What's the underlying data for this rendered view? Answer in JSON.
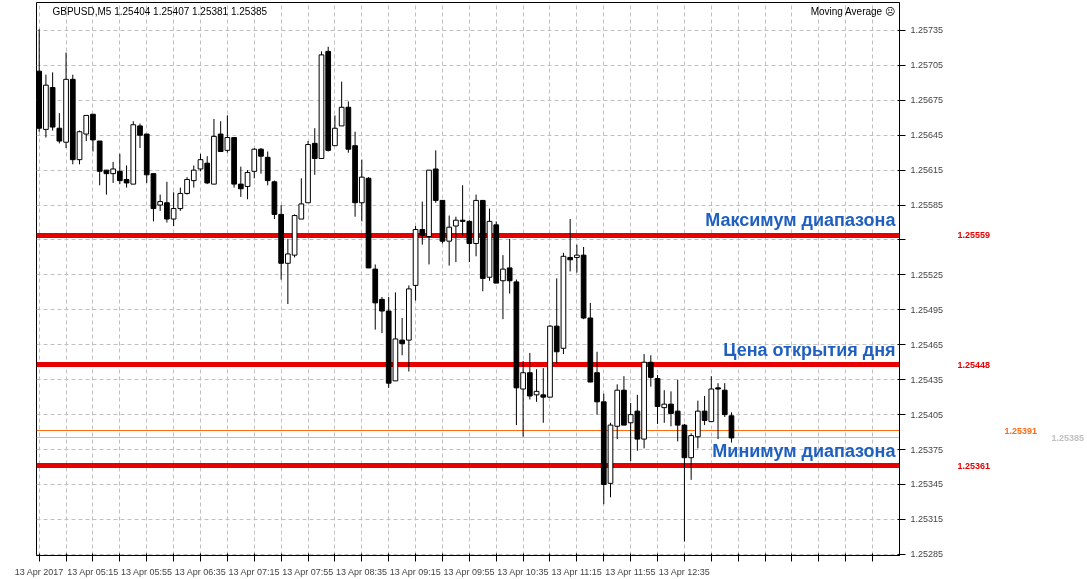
{
  "chart_data": {
    "type": "candlestick",
    "title": "GBPUSD,M5  1.25404 1.25407 1.25381 1.25385",
    "annotations": [
      "Moving Average ☹",
      "1.25559",
      "1.25448",
      "1.25361",
      "1.25391",
      "1.25385"
    ],
    "x": [
      "2017-04-13T04:35",
      "2017-04-13T04:40",
      "2017-04-13T04:45",
      "2017-04-13T04:50",
      "2017-04-13T04:55",
      "2017-04-13T05:00",
      "2017-04-13T05:05",
      "2017-04-13T05:10",
      "2017-04-13T05:15",
      "2017-04-13T05:20",
      "2017-04-13T05:25",
      "2017-04-13T05:30",
      "2017-04-13T05:35",
      "2017-04-13T05:40",
      "2017-04-13T05:45",
      "2017-04-13T05:50",
      "2017-04-13T05:55",
      "2017-04-13T06:00",
      "2017-04-13T06:05",
      "2017-04-13T06:10",
      "2017-04-13T06:15",
      "2017-04-13T06:20",
      "2017-04-13T06:25",
      "2017-04-13T06:30",
      "2017-04-13T06:35",
      "2017-04-13T06:40",
      "2017-04-13T06:45",
      "2017-04-13T06:50",
      "2017-04-13T06:55",
      "2017-04-13T07:00",
      "2017-04-13T07:05",
      "2017-04-13T07:10",
      "2017-04-13T07:15",
      "2017-04-13T07:20",
      "2017-04-13T07:25",
      "2017-04-13T07:30",
      "2017-04-13T07:35",
      "2017-04-13T07:40",
      "2017-04-13T07:45",
      "2017-04-13T07:50",
      "2017-04-13T07:55",
      "2017-04-13T08:00",
      "2017-04-13T08:05",
      "2017-04-13T08:10",
      "2017-04-13T08:15",
      "2017-04-13T08:20",
      "2017-04-13T08:25",
      "2017-04-13T08:30",
      "2017-04-13T08:35",
      "2017-04-13T08:40",
      "2017-04-13T08:45",
      "2017-04-13T08:50",
      "2017-04-13T08:55",
      "2017-04-13T09:00",
      "2017-04-13T09:05",
      "2017-04-13T09:10",
      "2017-04-13T09:15",
      "2017-04-13T09:20",
      "2017-04-13T09:25",
      "2017-04-13T09:30",
      "2017-04-13T09:35",
      "2017-04-13T09:40",
      "2017-04-13T09:45",
      "2017-04-13T09:50",
      "2017-04-13T09:55",
      "2017-04-13T10:00",
      "2017-04-13T10:05",
      "2017-04-13T10:10",
      "2017-04-13T10:15",
      "2017-04-13T10:20",
      "2017-04-13T10:25",
      "2017-04-13T10:30",
      "2017-04-13T10:35",
      "2017-04-13T10:40",
      "2017-04-13T10:45",
      "2017-04-13T10:50",
      "2017-04-13T10:55",
      "2017-04-13T11:00",
      "2017-04-13T11:05",
      "2017-04-13T11:10",
      "2017-04-13T11:15",
      "2017-04-13T11:20",
      "2017-04-13T11:25",
      "2017-04-13T11:30",
      "2017-04-13T11:35",
      "2017-04-13T11:40",
      "2017-04-13T11:45",
      "2017-04-13T11:50",
      "2017-04-13T11:55",
      "2017-04-13T12:00",
      "2017-04-13T12:05",
      "2017-04-13T12:10",
      "2017-04-13T12:15",
      "2017-04-13T12:20",
      "2017-04-13T12:25",
      "2017-04-13T12:30",
      "2017-04-13T12:35",
      "2017-04-13T12:40",
      "2017-04-13T12:45",
      "2017-04-13T12:50",
      "2017-04-13T12:55",
      "2017-04-13T13:00",
      "2017-04-13T13:05",
      "2017-04-13T13:10"
    ],
    "ohlc": [
      [
        1.257,
        1.25736,
        1.25648,
        1.25651
      ],
      [
        1.2565,
        1.25697,
        1.25643,
        1.25688
      ],
      [
        1.25686,
        1.25699,
        1.25649,
        1.25652
      ],
      [
        1.25651,
        1.25664,
        1.25638,
        1.2564
      ],
      [
        1.25639,
        1.25716,
        1.25634,
        1.25693
      ],
      [
        1.25693,
        1.25697,
        1.2562,
        1.25624
      ],
      [
        1.25624,
        1.25649,
        1.2562,
        1.25648
      ],
      [
        1.25646,
        1.25662,
        1.2564,
        1.25662
      ],
      [
        1.25663,
        1.25663,
        1.25631,
        1.25641
      ],
      [
        1.2564,
        1.2564,
        1.25602,
        1.25614
      ],
      [
        1.25615,
        1.25615,
        1.25594,
        1.25612
      ],
      [
        1.25612,
        1.25622,
        1.25604,
        1.25616
      ],
      [
        1.25614,
        1.25629,
        1.25603,
        1.25606
      ],
      [
        1.25607,
        1.25619,
        1.256,
        1.25604
      ],
      [
        1.25603,
        1.25657,
        1.25603,
        1.25654
      ],
      [
        1.25653,
        1.25655,
        1.25634,
        1.25645
      ],
      [
        1.25646,
        1.25646,
        1.25604,
        1.25611
      ],
      [
        1.25612,
        1.25612,
        1.25571,
        1.25582
      ],
      [
        1.25585,
        1.25594,
        1.2558,
        1.25588
      ],
      [
        1.25587,
        1.25605,
        1.2557,
        1.25573
      ],
      [
        1.25573,
        1.25596,
        1.25567,
        1.25582
      ],
      [
        1.25582,
        1.256,
        1.2558,
        1.25595
      ],
      [
        1.25595,
        1.25609,
        1.25594,
        1.25607
      ],
      [
        1.25606,
        1.25619,
        1.256,
        1.25615
      ],
      [
        1.25616,
        1.25629,
        1.25614,
        1.25624
      ],
      [
        1.25621,
        1.25627,
        1.25603,
        1.25604
      ],
      [
        1.25603,
        1.25659,
        1.25603,
        1.25644
      ],
      [
        1.25646,
        1.25657,
        1.25631,
        1.25631
      ],
      [
        1.25632,
        1.25662,
        1.2563,
        1.25643
      ],
      [
        1.25643,
        1.25643,
        1.256,
        1.25603
      ],
      [
        1.25603,
        1.25618,
        1.25592,
        1.25599
      ],
      [
        1.25601,
        1.25615,
        1.2559,
        1.25613
      ],
      [
        1.25614,
        1.25634,
        1.25608,
        1.25633
      ],
      [
        1.25633,
        1.25634,
        1.25612,
        1.25627
      ],
      [
        1.25626,
        1.25631,
        1.25602,
        1.25606
      ],
      [
        1.25605,
        1.25606,
        1.25573,
        1.25577
      ],
      [
        1.25577,
        1.25585,
        1.25521,
        1.25535
      ],
      [
        1.25535,
        1.25556,
        1.255,
        1.25543
      ],
      [
        1.25542,
        1.25577,
        1.2554,
        1.25576
      ],
      [
        1.25573,
        1.25608,
        1.25573,
        1.25586
      ],
      [
        1.25587,
        1.2564,
        1.25587,
        1.25637
      ],
      [
        1.25638,
        1.25651,
        1.25611,
        1.25625
      ],
      [
        1.25625,
        1.25717,
        1.25625,
        1.25714
      ],
      [
        1.25717,
        1.25721,
        1.25631,
        1.25632
      ],
      [
        1.25636,
        1.25662,
        1.25636,
        1.25651
      ],
      [
        1.25653,
        1.25691,
        1.25653,
        1.25669
      ],
      [
        1.25669,
        1.25674,
        1.2563,
        1.25633
      ],
      [
        1.25636,
        1.25648,
        1.25575,
        1.25587
      ],
      [
        1.25587,
        1.25624,
        1.25571,
        1.25609
      ],
      [
        1.25608,
        1.25609,
        1.25531,
        1.25531
      ],
      [
        1.2553,
        1.25534,
        1.25478,
        1.25501
      ],
      [
        1.25504,
        1.25506,
        1.25475,
        1.25494
      ],
      [
        1.25494,
        1.25506,
        1.25428,
        1.25432
      ],
      [
        1.25434,
        1.2551,
        1.25434,
        1.2547
      ],
      [
        1.25469,
        1.25488,
        1.25456,
        1.25466
      ],
      [
        1.25469,
        1.25516,
        1.25442,
        1.25513
      ],
      [
        1.25516,
        1.25567,
        1.25503,
        1.25564
      ],
      [
        1.25564,
        1.25588,
        1.25551,
        1.25559
      ],
      [
        1.25558,
        1.25615,
        1.25534,
        1.25615
      ],
      [
        1.25616,
        1.25632,
        1.25587,
        1.25589
      ],
      [
        1.25589,
        1.25589,
        1.25552,
        1.25554
      ],
      [
        1.25554,
        1.25576,
        1.25533,
        1.25566
      ],
      [
        1.25567,
        1.25575,
        1.25536,
        1.25572
      ],
      [
        1.25572,
        1.25602,
        1.25559,
        1.25571
      ],
      [
        1.25571,
        1.25572,
        1.25536,
        1.25552
      ],
      [
        1.25552,
        1.25594,
        1.25541,
        1.25589
      ],
      [
        1.25589,
        1.25589,
        1.25511,
        1.25522
      ],
      [
        1.25523,
        1.25582,
        1.2552,
        1.25571
      ],
      [
        1.25568,
        1.25571,
        1.25518,
        1.25518
      ],
      [
        1.2552,
        1.25542,
        1.25487,
        1.2553
      ],
      [
        1.25531,
        1.25556,
        1.25509,
        1.2552
      ],
      [
        1.25519,
        1.25521,
        1.25396,
        1.25428
      ],
      [
        1.25427,
        1.25451,
        1.25386,
        1.25441
      ],
      [
        1.25441,
        1.25458,
        1.25418,
        1.25421
      ],
      [
        1.25422,
        1.25444,
        1.25416,
        1.25425
      ],
      [
        1.25422,
        1.25445,
        1.25398,
        1.2542
      ],
      [
        1.2542,
        1.25482,
        1.2542,
        1.25481
      ],
      [
        1.25481,
        1.25522,
        1.25449,
        1.25459
      ],
      [
        1.25462,
        1.25544,
        1.25457,
        1.25541
      ],
      [
        1.2554,
        1.25573,
        1.25528,
        1.25538
      ],
      [
        1.2554,
        1.25551,
        1.25527,
        1.25542
      ],
      [
        1.25542,
        1.25549,
        1.25487,
        1.25488
      ],
      [
        1.25488,
        1.25501,
        1.25433,
        1.25433
      ],
      [
        1.25441,
        1.25459,
        1.25405,
        1.25416
      ],
      [
        1.25416,
        1.25423,
        1.25328,
        1.25345
      ],
      [
        1.25346,
        1.25398,
        1.25334,
        1.25396
      ],
      [
        1.25395,
        1.25431,
        1.25384,
        1.25426
      ],
      [
        1.25426,
        1.25438,
        1.25396,
        1.25396
      ],
      [
        1.25398,
        1.25415,
        1.25365,
        1.25405
      ],
      [
        1.25408,
        1.25422,
        1.25374,
        1.25384
      ],
      [
        1.25384,
        1.25457,
        1.25376,
        1.2545
      ],
      [
        1.2545,
        1.25456,
        1.25429,
        1.25437
      ],
      [
        1.25436,
        1.25439,
        1.25397,
        1.25412
      ],
      [
        1.25411,
        1.25426,
        1.25398,
        1.25414
      ],
      [
        1.25414,
        1.25425,
        1.25395,
        1.25406
      ],
      [
        1.25408,
        1.25435,
        1.25382,
        1.25396
      ],
      [
        1.25396,
        1.25397,
        1.25296,
        1.25368
      ],
      [
        1.25368,
        1.25389,
        1.25349,
        1.25387
      ],
      [
        1.25386,
        1.25417,
        1.25376,
        1.25408
      ],
      [
        1.25408,
        1.25421,
        1.25396,
        1.254
      ],
      [
        1.25399,
        1.25438,
        1.25399,
        1.25427
      ],
      [
        1.25428,
        1.25432,
        1.25384,
        1.25427
      ],
      [
        1.25426,
        1.25432,
        1.25403,
        1.25405
      ],
      [
        1.25404,
        1.25407,
        1.25381,
        1.25385
      ]
    ],
    "xlim": [
      "2017-04-13T04:33",
      "2017-04-13T15:15"
    ],
    "xticks": [
      {
        "value": "2017-04-13T04:35",
        "label": "13 Apr 2017"
      },
      {
        "value": "2017-04-13T04:55",
        "label": null
      },
      {
        "value": "2017-04-13T05:15",
        "label": "13 Apr 05:15"
      },
      {
        "value": "2017-04-13T05:35",
        "label": null
      },
      {
        "value": "2017-04-13T05:55",
        "label": "13 Apr 05:55"
      },
      {
        "value": "2017-04-13T06:15",
        "label": null
      },
      {
        "value": "2017-04-13T06:35",
        "label": "13 Apr 06:35"
      },
      {
        "value": "2017-04-13T06:55",
        "label": null
      },
      {
        "value": "2017-04-13T07:15",
        "label": "13 Apr 07:15"
      },
      {
        "value": "2017-04-13T07:35",
        "label": null
      },
      {
        "value": "2017-04-13T07:55",
        "label": "13 Apr 07:55"
      },
      {
        "value": "2017-04-13T08:15",
        "label": null
      },
      {
        "value": "2017-04-13T08:35",
        "label": "13 Apr 08:35"
      },
      {
        "value": "2017-04-13T08:55",
        "label": null
      },
      {
        "value": "2017-04-13T09:15",
        "label": "13 Apr 09:15"
      },
      {
        "value": "2017-04-13T09:35",
        "label": null
      },
      {
        "value": "2017-04-13T09:55",
        "label": "13 Apr 09:55"
      },
      {
        "value": "2017-04-13T10:15",
        "label": null
      },
      {
        "value": "2017-04-13T10:35",
        "label": "13 Apr 10:35"
      },
      {
        "value": "2017-04-13T10:55",
        "label": null
      },
      {
        "value": "2017-04-13T11:15",
        "label": "13 Apr 11:15"
      },
      {
        "value": "2017-04-13T11:35",
        "label": null
      },
      {
        "value": "2017-04-13T11:55",
        "label": "13 Apr 11:55"
      },
      {
        "value": "2017-04-13T12:15",
        "label": null
      },
      {
        "value": "2017-04-13T12:35",
        "label": "13 Apr 12:35"
      },
      {
        "value": "2017-04-13T12:55",
        "label": null
      },
      {
        "value": "2017-04-13T13:15",
        "label": null
      },
      {
        "value": "2017-04-13T13:35",
        "label": null
      },
      {
        "value": "2017-04-13T13:55",
        "label": null
      },
      {
        "value": "2017-04-13T14:15",
        "label": null
      },
      {
        "value": "2017-04-13T14:35",
        "label": null
      },
      {
        "value": "2017-04-13T14:55",
        "label": null
      }
    ],
    "ylim": [
      1.25284,
      1.25759
    ],
    "yticks": [
      1.25735,
      1.25705,
      1.25675,
      1.25645,
      1.25615,
      1.25585,
      {
        "value": 1.25555,
        "label": null
      },
      1.25525,
      1.25495,
      1.25465,
      1.25435,
      1.25405,
      1.25375,
      1.25345,
      1.25315,
      1.25285
    ],
    "ref_lines": [
      {
        "axis": "y",
        "value": 1.25559,
        "label": "Максимум диапазона",
        "color": "#e60000"
      },
      {
        "axis": "y",
        "value": 1.25448,
        "label": "Цена открытия дня",
        "color": "#e60000"
      },
      {
        "axis": "y",
        "value": 1.25361,
        "label": "Минимум диапазона",
        "color": "#e60000"
      },
      {
        "axis": "y",
        "value": 1.25391,
        "color": "#ff6a13"
      },
      {
        "axis": "y",
        "value": 1.25385,
        "color": "#c0c0c0"
      }
    ],
    "grid": true
  }
}
